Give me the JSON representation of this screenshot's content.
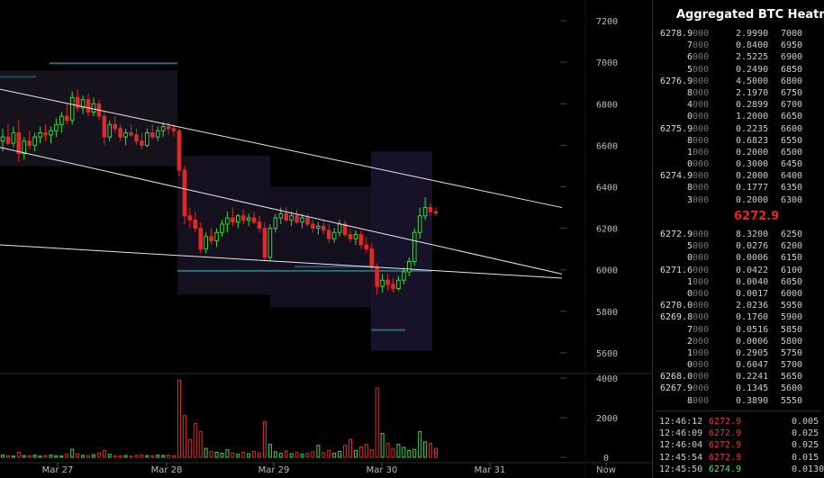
{
  "colors": {
    "up": "#3cd64a",
    "down": "#e02828",
    "grid": "#1c1c1c",
    "line": "#e8e8e8",
    "mid_price": "#ee2222",
    "sell_trade": "#ee3333",
    "buy_trade": "#44ee44"
  },
  "chart_data": {
    "type": "candlestick",
    "title": "",
    "x_ticks": [
      "Mar 27",
      "Mar 28",
      "Mar 29",
      "Mar 30",
      "Mar 31",
      "Now"
    ],
    "y_ticks": [
      "7200",
      "7000",
      "6800",
      "6600",
      "6400",
      "6200",
      "6000",
      "5800",
      "5600"
    ],
    "ylim": [
      5500,
      7300
    ],
    "volume_ticks": [
      "4000",
      "2000",
      "0"
    ],
    "volume_ylim": [
      0,
      4000
    ],
    "trendlines": [
      {
        "from": {
          "t": 0,
          "p": 6870
        },
        "to": {
          "t": 1.0,
          "p": 6300
        }
      },
      {
        "from": {
          "t": 0,
          "p": 6590
        },
        "to": {
          "t": 1.0,
          "p": 5980
        }
      },
      {
        "from": {
          "t": 0,
          "p": 6120
        },
        "to": {
          "t": 1.0,
          "p": 5960
        }
      }
    ],
    "candles": [
      {
        "o": 6620,
        "h": 6680,
        "l": 6570,
        "c": 6640
      },
      {
        "o": 6640,
        "h": 6700,
        "l": 6600,
        "c": 6610
      },
      {
        "o": 6610,
        "h": 6690,
        "l": 6590,
        "c": 6660
      },
      {
        "o": 6660,
        "h": 6720,
        "l": 6520,
        "c": 6560
      },
      {
        "o": 6560,
        "h": 6640,
        "l": 6530,
        "c": 6620
      },
      {
        "o": 6620,
        "h": 6670,
        "l": 6580,
        "c": 6600
      },
      {
        "o": 6600,
        "h": 6660,
        "l": 6570,
        "c": 6640
      },
      {
        "o": 6640,
        "h": 6690,
        "l": 6610,
        "c": 6660
      },
      {
        "o": 6660,
        "h": 6700,
        "l": 6620,
        "c": 6650
      },
      {
        "o": 6650,
        "h": 6690,
        "l": 6610,
        "c": 6670
      },
      {
        "o": 6670,
        "h": 6730,
        "l": 6640,
        "c": 6700
      },
      {
        "o": 6700,
        "h": 6760,
        "l": 6660,
        "c": 6740
      },
      {
        "o": 6740,
        "h": 6800,
        "l": 6700,
        "c": 6720
      },
      {
        "o": 6720,
        "h": 6860,
        "l": 6700,
        "c": 6830
      },
      {
        "o": 6830,
        "h": 6870,
        "l": 6760,
        "c": 6780
      },
      {
        "o": 6780,
        "h": 6840,
        "l": 6750,
        "c": 6820
      },
      {
        "o": 6820,
        "h": 6850,
        "l": 6740,
        "c": 6760
      },
      {
        "o": 6760,
        "h": 6830,
        "l": 6740,
        "c": 6800
      },
      {
        "o": 6800,
        "h": 6820,
        "l": 6720,
        "c": 6740
      },
      {
        "o": 6740,
        "h": 6760,
        "l": 6600,
        "c": 6640
      },
      {
        "o": 6640,
        "h": 6720,
        "l": 6620,
        "c": 6700
      },
      {
        "o": 6700,
        "h": 6740,
        "l": 6660,
        "c": 6680
      },
      {
        "o": 6680,
        "h": 6700,
        "l": 6620,
        "c": 6640
      },
      {
        "o": 6640,
        "h": 6680,
        "l": 6600,
        "c": 6660
      },
      {
        "o": 6660,
        "h": 6700,
        "l": 6640,
        "c": 6650
      },
      {
        "o": 6650,
        "h": 6680,
        "l": 6600,
        "c": 6620
      },
      {
        "o": 6620,
        "h": 6660,
        "l": 6580,
        "c": 6600
      },
      {
        "o": 6600,
        "h": 6680,
        "l": 6590,
        "c": 6660
      },
      {
        "o": 6660,
        "h": 6700,
        "l": 6630,
        "c": 6640
      },
      {
        "o": 6640,
        "h": 6690,
        "l": 6620,
        "c": 6670
      },
      {
        "o": 6670,
        "h": 6710,
        "l": 6640,
        "c": 6690
      },
      {
        "o": 6690,
        "h": 6710,
        "l": 6650,
        "c": 6680
      },
      {
        "o": 6680,
        "h": 6700,
        "l": 6640,
        "c": 6670
      },
      {
        "o": 6670,
        "h": 6680,
        "l": 6450,
        "c": 6480
      },
      {
        "o": 6480,
        "h": 6500,
        "l": 6220,
        "c": 6260
      },
      {
        "o": 6260,
        "h": 6300,
        "l": 6200,
        "c": 6240
      },
      {
        "o": 6240,
        "h": 6280,
        "l": 6180,
        "c": 6200
      },
      {
        "o": 6200,
        "h": 6230,
        "l": 6080,
        "c": 6100
      },
      {
        "o": 6100,
        "h": 6180,
        "l": 6080,
        "c": 6160
      },
      {
        "o": 6160,
        "h": 6200,
        "l": 6120,
        "c": 6140
      },
      {
        "o": 6140,
        "h": 6200,
        "l": 6110,
        "c": 6180
      },
      {
        "o": 6180,
        "h": 6240,
        "l": 6160,
        "c": 6220
      },
      {
        "o": 6220,
        "h": 6280,
        "l": 6180,
        "c": 6250
      },
      {
        "o": 6250,
        "h": 6300,
        "l": 6210,
        "c": 6230
      },
      {
        "o": 6230,
        "h": 6270,
        "l": 6200,
        "c": 6260
      },
      {
        "o": 6260,
        "h": 6290,
        "l": 6220,
        "c": 6240
      },
      {
        "o": 6240,
        "h": 6270,
        "l": 6210,
        "c": 6250
      },
      {
        "o": 6250,
        "h": 6280,
        "l": 6220,
        "c": 6230
      },
      {
        "o": 6230,
        "h": 6260,
        "l": 6180,
        "c": 6200
      },
      {
        "o": 6200,
        "h": 6230,
        "l": 6040,
        "c": 6060
      },
      {
        "o": 6060,
        "h": 6220,
        "l": 6040,
        "c": 6200
      },
      {
        "o": 6200,
        "h": 6270,
        "l": 6180,
        "c": 6250
      },
      {
        "o": 6250,
        "h": 6300,
        "l": 6220,
        "c": 6270
      },
      {
        "o": 6270,
        "h": 6300,
        "l": 6230,
        "c": 6240
      },
      {
        "o": 6240,
        "h": 6280,
        "l": 6210,
        "c": 6260
      },
      {
        "o": 6260,
        "h": 6290,
        "l": 6220,
        "c": 6230
      },
      {
        "o": 6230,
        "h": 6270,
        "l": 6200,
        "c": 6250
      },
      {
        "o": 6250,
        "h": 6270,
        "l": 6210,
        "c": 6220
      },
      {
        "o": 6220,
        "h": 6240,
        "l": 6180,
        "c": 6200
      },
      {
        "o": 6200,
        "h": 6230,
        "l": 6170,
        "c": 6210
      },
      {
        "o": 6210,
        "h": 6240,
        "l": 6170,
        "c": 6190
      },
      {
        "o": 6190,
        "h": 6220,
        "l": 6130,
        "c": 6150
      },
      {
        "o": 6150,
        "h": 6200,
        "l": 6130,
        "c": 6180
      },
      {
        "o": 6180,
        "h": 6240,
        "l": 6160,
        "c": 6220
      },
      {
        "o": 6220,
        "h": 6240,
        "l": 6160,
        "c": 6170
      },
      {
        "o": 6170,
        "h": 6200,
        "l": 6130,
        "c": 6150
      },
      {
        "o": 6150,
        "h": 6190,
        "l": 6120,
        "c": 6170
      },
      {
        "o": 6170,
        "h": 6190,
        "l": 6100,
        "c": 6120
      },
      {
        "o": 6120,
        "h": 6160,
        "l": 6080,
        "c": 6100
      },
      {
        "o": 6100,
        "h": 6130,
        "l": 6000,
        "c": 6010
      },
      {
        "o": 6010,
        "h": 6030,
        "l": 5880,
        "c": 5920
      },
      {
        "o": 5920,
        "h": 5980,
        "l": 5890,
        "c": 5950
      },
      {
        "o": 5950,
        "h": 5980,
        "l": 5900,
        "c": 5930
      },
      {
        "o": 5930,
        "h": 5960,
        "l": 5890,
        "c": 5910
      },
      {
        "o": 5910,
        "h": 5970,
        "l": 5900,
        "c": 5950
      },
      {
        "o": 5950,
        "h": 6010,
        "l": 5930,
        "c": 5990
      },
      {
        "o": 5990,
        "h": 6060,
        "l": 5970,
        "c": 6040
      },
      {
        "o": 6040,
        "h": 6200,
        "l": 6020,
        "c": 6180
      },
      {
        "o": 6180,
        "h": 6300,
        "l": 6150,
        "c": 6260
      },
      {
        "o": 6260,
        "h": 6350,
        "l": 6240,
        "c": 6300
      },
      {
        "o": 6300,
        "h": 6320,
        "l": 6260,
        "c": 6280
      },
      {
        "o": 6280,
        "h": 6300,
        "l": 6260,
        "c": 6272.9
      }
    ],
    "volumes": [
      120,
      80,
      60,
      250,
      90,
      70,
      110,
      60,
      90,
      120,
      80,
      60,
      150,
      400,
      180,
      100,
      90,
      130,
      220,
      350,
      150,
      80,
      70,
      90,
      60,
      100,
      130,
      90,
      70,
      120,
      100,
      110,
      80,
      3900,
      2100,
      900,
      1700,
      1300,
      450,
      300,
      250,
      200,
      380,
      220,
      150,
      250,
      180,
      300,
      220,
      1800,
      650,
      280,
      200,
      320,
      180,
      240,
      150,
      200,
      280,
      600,
      240,
      350,
      200,
      300,
      600,
      900,
      350,
      520,
      650,
      380,
      3500,
      1200,
      700,
      420,
      650,
      500,
      350,
      400,
      1300,
      780,
      700,
      450,
      220
    ]
  },
  "orderbook": {
    "asks": [
      {
        "p_main": "6278.9",
        "p_dim": "000",
        "v_main": "2.9990",
        "v_dim": "",
        "lvl": "7000"
      },
      {
        "p_main": "7",
        "p_dim": "000",
        "v_main": "0.8400",
        "v_dim": "",
        "lvl": "6950"
      },
      {
        "p_main": "6",
        "p_dim": "000",
        "v_main": "2.5225",
        "v_dim": "",
        "lvl": "6900"
      },
      {
        "p_main": "5",
        "p_dim": "000",
        "v_main": "0.2490",
        "v_dim": "",
        "lvl": "6850"
      },
      {
        "p_main": "6276.9",
        "p_dim": "000",
        "v_main": "4.5000",
        "v_dim": "",
        "lvl": "6800"
      },
      {
        "p_main": "8",
        "p_dim": "000",
        "v_main": "2.1970",
        "v_dim": "",
        "lvl": "6750"
      },
      {
        "p_main": "4",
        "p_dim": "000",
        "v_main": "0.2899",
        "v_dim": "",
        "lvl": "6700"
      },
      {
        "p_main": "0",
        "p_dim": "000",
        "v_main": "1.2000",
        "v_dim": "",
        "lvl": "6650"
      },
      {
        "p_main": "6275.9",
        "p_dim": "000",
        "v_main": "0.2235",
        "v_dim": "",
        "lvl": "6600"
      },
      {
        "p_main": "8",
        "p_dim": "000",
        "v_main": "0.6823",
        "v_dim": "",
        "lvl": "6550"
      },
      {
        "p_main": "1",
        "p_dim": "000",
        "v_main": "0.2000",
        "v_dim": "",
        "lvl": "6500"
      },
      {
        "p_main": "0",
        "p_dim": "000",
        "v_main": "0.3000",
        "v_dim": "",
        "lvl": "6450"
      },
      {
        "p_main": "6274.9",
        "p_dim": "000",
        "v_main": "0.2000",
        "v_dim": "",
        "lvl": "6400"
      },
      {
        "p_main": "8",
        "p_dim": "000",
        "v_main": "0.1777",
        "v_dim": "",
        "lvl": "6350"
      },
      {
        "p_main": "3",
        "p_dim": "000",
        "v_main": "0.2000",
        "v_dim": "",
        "lvl": "6300"
      }
    ],
    "mid": "6272.9",
    "bids": [
      {
        "p_main": "6272.9",
        "p_dim": "000",
        "v_main": "8.3200",
        "v_dim": "",
        "lvl": "6250"
      },
      {
        "p_main": "5",
        "p_dim": "000",
        "v_main": "0.0276",
        "v_dim": "",
        "lvl": "6200"
      },
      {
        "p_main": "0",
        "p_dim": "000",
        "v_main": "0.0006",
        "v_dim": "",
        "lvl": "6150"
      },
      {
        "p_main": "6271.6",
        "p_dim": "000",
        "v_main": "0.0422",
        "v_dim": "",
        "lvl": "6100"
      },
      {
        "p_main": "1",
        "p_dim": "000",
        "v_main": "0.0040",
        "v_dim": "",
        "lvl": "6050"
      },
      {
        "p_main": "0",
        "p_dim": "000",
        "v_main": "0.0017",
        "v_dim": "",
        "lvl": "6000"
      },
      {
        "p_main": "6270.0",
        "p_dim": "000",
        "v_main": "2.0236",
        "v_dim": "",
        "lvl": "5950"
      },
      {
        "p_main": "6269.8",
        "p_dim": "000",
        "v_main": "0.1760",
        "v_dim": "",
        "lvl": "5900"
      },
      {
        "p_main": "7",
        "p_dim": "000",
        "v_main": "0.0516",
        "v_dim": "",
        "lvl": "5850"
      },
      {
        "p_main": "2",
        "p_dim": "000",
        "v_main": "0.0006",
        "v_dim": "",
        "lvl": "5800"
      },
      {
        "p_main": "1",
        "p_dim": "000",
        "v_main": "0.2905",
        "v_dim": "",
        "lvl": "5750"
      },
      {
        "p_main": "0",
        "p_dim": "000",
        "v_main": "0.6047",
        "v_dim": "",
        "lvl": "5700"
      },
      {
        "p_main": "6268.0",
        "p_dim": "000",
        "v_main": "0.2241",
        "v_dim": "",
        "lvl": "5650"
      },
      {
        "p_main": "6267.9",
        "p_dim": "000",
        "v_main": "0.1345",
        "v_dim": "",
        "lvl": "5600"
      },
      {
        "p_main": "8",
        "p_dim": "000",
        "v_main": "0.3890",
        "v_dim": "",
        "lvl": "5550"
      }
    ]
  },
  "sidebar": {
    "title": "Aggregated BTC Heatma"
  },
  "trades": [
    {
      "time": "12:46:12",
      "price": "6272.9",
      "side": "sell",
      "size": "0.005"
    },
    {
      "time": "12:46:09",
      "price": "6272.9",
      "side": "sell",
      "size": "0.025"
    },
    {
      "time": "12:46:04",
      "price": "6272.9",
      "side": "sell",
      "size": "0.025"
    },
    {
      "time": "12:45:54",
      "price": "6272.9",
      "side": "sell",
      "size": "0.015"
    },
    {
      "time": "12:45:50",
      "price": "6274.9",
      "side": "buy",
      "size": "0.0130"
    }
  ]
}
